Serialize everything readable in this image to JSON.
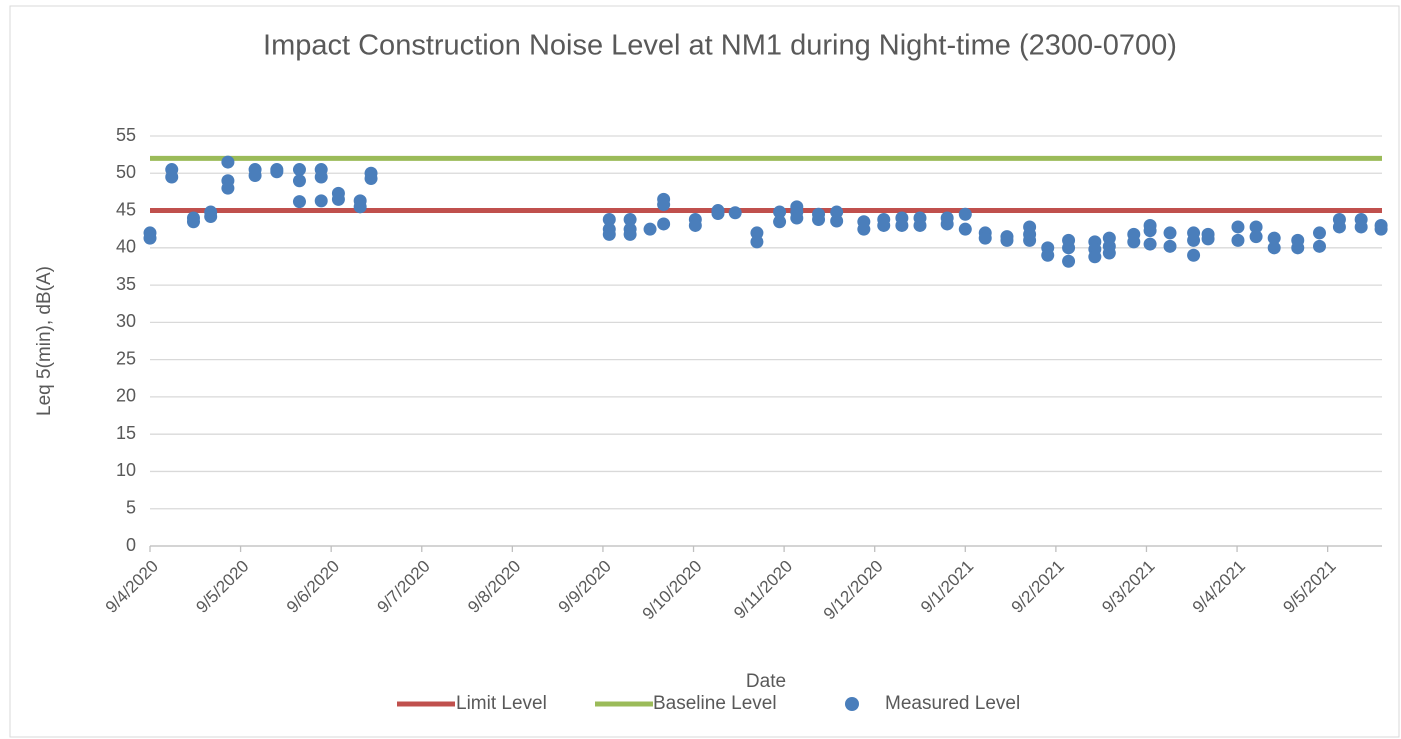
{
  "chart_data": {
    "type": "scatter",
    "title": "Impact Construction Noise Level at NM1 during Night-time (2300-0700)",
    "x_label": "Date",
    "y_label": "Leq 5(min), dB(A)",
    "xlim": [
      0,
      13.6
    ],
    "xticks": [
      {
        "value": 0,
        "label": "9/4/2020"
      },
      {
        "value": 1,
        "label": "9/5/2020"
      },
      {
        "value": 2,
        "label": "9/6/2020"
      },
      {
        "value": 3,
        "label": "9/7/2020"
      },
      {
        "value": 4,
        "label": "9/8/2020"
      },
      {
        "value": 5,
        "label": "9/9/2020"
      },
      {
        "value": 6,
        "label": "9/10/2020"
      },
      {
        "value": 7,
        "label": "9/11/2020"
      },
      {
        "value": 8,
        "label": "9/12/2020"
      },
      {
        "value": 9,
        "label": "9/1/2021"
      },
      {
        "value": 10,
        "label": "9/2/2021"
      },
      {
        "value": 11,
        "label": "9/3/2021"
      },
      {
        "value": 12,
        "label": "9/4/2021"
      },
      {
        "value": 13,
        "label": "9/5/2021"
      }
    ],
    "ylim": [
      0,
      55
    ],
    "yticks": [
      0,
      5,
      10,
      15,
      20,
      25,
      30,
      35,
      40,
      45,
      50,
      55
    ],
    "grid": true,
    "reference_lines": [
      {
        "name": "Limit Level",
        "color": "#c0504d",
        "value": 45
      },
      {
        "name": "Baseline Level",
        "color": "#9bbb59",
        "value": 52
      }
    ],
    "series": [
      {
        "name": "Measured Level",
        "color": "#4a7ebb",
        "x": [
          0,
          0,
          0.24,
          0.24,
          0.48,
          0.48,
          0.67,
          0.67,
          0.86,
          0.86,
          0.86,
          1.16,
          1.16,
          1.4,
          1.4,
          1.65,
          1.65,
          1.65,
          1.89,
          1.89,
          1.89,
          2.08,
          2.08,
          2.32,
          2.32,
          2.44,
          2.44,
          5.07,
          5.07,
          5.07,
          5.3,
          5.3,
          5.3,
          5.52,
          5.67,
          5.67,
          5.67,
          6.02,
          6.02,
          6.27,
          6.27,
          6.46,
          6.7,
          6.7,
          6.95,
          6.95,
          7.14,
          7.14,
          7.14,
          7.38,
          7.38,
          7.58,
          7.58,
          7.88,
          7.88,
          8.1,
          8.1,
          8.3,
          8.3,
          8.5,
          8.5,
          8.8,
          8.8,
          9,
          9,
          9.22,
          9.22,
          9.46,
          9.46,
          9.71,
          9.71,
          9.71,
          9.91,
          9.91,
          10.14,
          10.14,
          10.14,
          10.43,
          10.43,
          10.43,
          10.59,
          10.59,
          10.59,
          10.86,
          10.86,
          11.04,
          11.04,
          11.04,
          11.26,
          11.26,
          11.52,
          11.52,
          11.52,
          11.68,
          11.68,
          12.01,
          12.01,
          12.21,
          12.21,
          12.41,
          12.41,
          12.67,
          12.67,
          12.91,
          12.91,
          13.13,
          13.13,
          13.37,
          13.37,
          13.59,
          13.59
        ],
        "values": [
          42,
          41.3,
          50.5,
          49.5,
          44,
          43.5,
          44.8,
          44.2,
          51.5,
          49,
          48,
          50.5,
          49.7,
          50.5,
          50.2,
          50.5,
          49,
          46.2,
          50.5,
          49.5,
          46.3,
          47.3,
          46.5,
          46.3,
          45.5,
          50,
          49.3,
          43.8,
          42.5,
          41.8,
          43.8,
          42.5,
          41.8,
          42.5,
          46.5,
          45.8,
          43.2,
          43.8,
          43,
          45,
          44.6,
          44.7,
          42,
          40.8,
          44.8,
          43.5,
          45.5,
          44.8,
          44,
          44.5,
          43.8,
          44.8,
          43.6,
          43.5,
          42.5,
          43.8,
          43,
          44,
          43,
          44,
          43,
          44,
          43.2,
          44.5,
          42.5,
          42,
          41.3,
          41.5,
          41,
          42.8,
          41.8,
          41,
          40,
          39,
          41,
          40,
          38.2,
          40.8,
          39.8,
          38.8,
          41.3,
          40.2,
          39.3,
          41.8,
          40.8,
          43,
          42.3,
          40.5,
          42,
          40.2,
          42,
          41,
          39,
          41.8,
          41.2,
          42.8,
          41,
          42.8,
          41.5,
          41.3,
          40,
          41,
          40,
          42,
          40.2,
          43.8,
          42.8,
          43.8,
          42.8,
          43,
          42.5
        ]
      }
    ]
  }
}
